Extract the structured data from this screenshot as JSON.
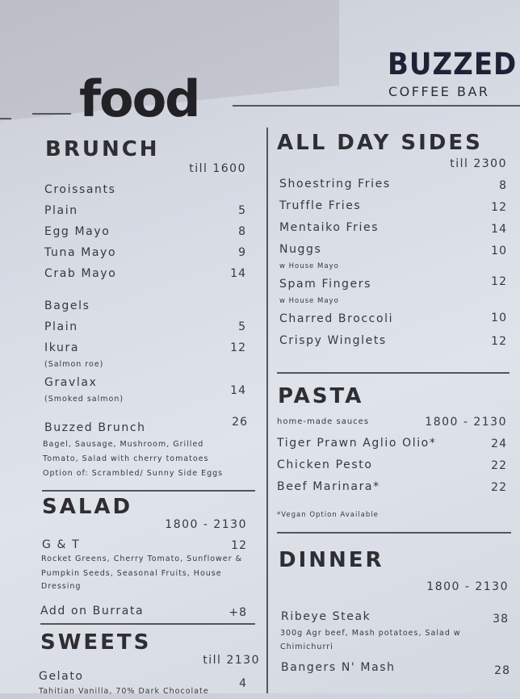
{
  "header": {
    "title": "food",
    "brand": "BUZZED",
    "brand_sub": "COFFEE BAR"
  },
  "brunch": {
    "heading": "BRUNCH",
    "time": "till 1600",
    "croissants": {
      "label": "Croissants",
      "items": [
        {
          "name": "Plain",
          "price": "5"
        },
        {
          "name": "Egg Mayo",
          "price": "8"
        },
        {
          "name": "Tuna Mayo",
          "price": "9"
        },
        {
          "name": "Crab Mayo",
          "price": "14"
        }
      ]
    },
    "bagels": {
      "label": "Bagels",
      "items": [
        {
          "name": "Plain",
          "price": "5"
        },
        {
          "name": "Ikura",
          "note": "(Salmon roe)",
          "price": "12"
        },
        {
          "name": "Gravlax",
          "note": "(Smoked salmon)",
          "price": "14"
        }
      ]
    },
    "buzzed_brunch": {
      "name": "Buzzed Brunch",
      "price": "26",
      "desc": [
        "Bagel, Sausage, Mushroom, Grilled",
        "Tomato, Salad with cherry tomatoes",
        "Option of: Scrambled/ Sunny Side Eggs"
      ]
    }
  },
  "salad": {
    "heading": "SALAD",
    "time": "1800 - 2130",
    "items": [
      {
        "name": "G & T",
        "price": "12",
        "desc": [
          "Rocket Greens, Cherry Tomato, Sunflower &",
          "Pumpkin Seeds, Seasonal Fruits, House",
          "Dressing"
        ]
      }
    ],
    "addon": {
      "name": "Add on Burrata",
      "price": "+8"
    }
  },
  "sweets": {
    "heading": "SWEETS",
    "time": "till 2130",
    "items": [
      {
        "name": "Gelato",
        "price": "4",
        "desc": "Tahitian Vanilla, 70% Dark Chocolate"
      }
    ]
  },
  "sides": {
    "heading": "ALL DAY SIDES",
    "time": "till 2300",
    "items": [
      {
        "name": "Shoestring Fries",
        "price": "8"
      },
      {
        "name": "Truffle Fries",
        "price": "12"
      },
      {
        "name": "Mentaiko Fries",
        "price": "14"
      },
      {
        "name": "Nuggs",
        "note": "w House Mayo",
        "price": "10"
      },
      {
        "name": "Spam Fingers",
        "note": "w House Mayo",
        "price": "12"
      },
      {
        "name": "Charred Broccoli",
        "price": "10"
      },
      {
        "name": "Crispy Winglets",
        "price": "12"
      }
    ]
  },
  "pasta": {
    "heading": "PASTA",
    "subtitle": "home-made sauces",
    "time": "1800 - 2130",
    "items": [
      {
        "name": "Tiger Prawn Aglio Olio*",
        "price": "24"
      },
      {
        "name": "Chicken Pesto",
        "price": "22"
      },
      {
        "name": "Beef Marinara*",
        "price": "22"
      }
    ],
    "footnote": "*Vegan Option Available"
  },
  "dinner": {
    "heading": "DINNER",
    "time": "1800 - 2130",
    "items": [
      {
        "name": "Ribeye Steak",
        "price": "38",
        "desc": [
          "300g Agr beef, Mash potatoes, Salad w",
          "Chimichurri"
        ]
      },
      {
        "name": "Bangers N' Mash",
        "price": "28"
      }
    ]
  }
}
